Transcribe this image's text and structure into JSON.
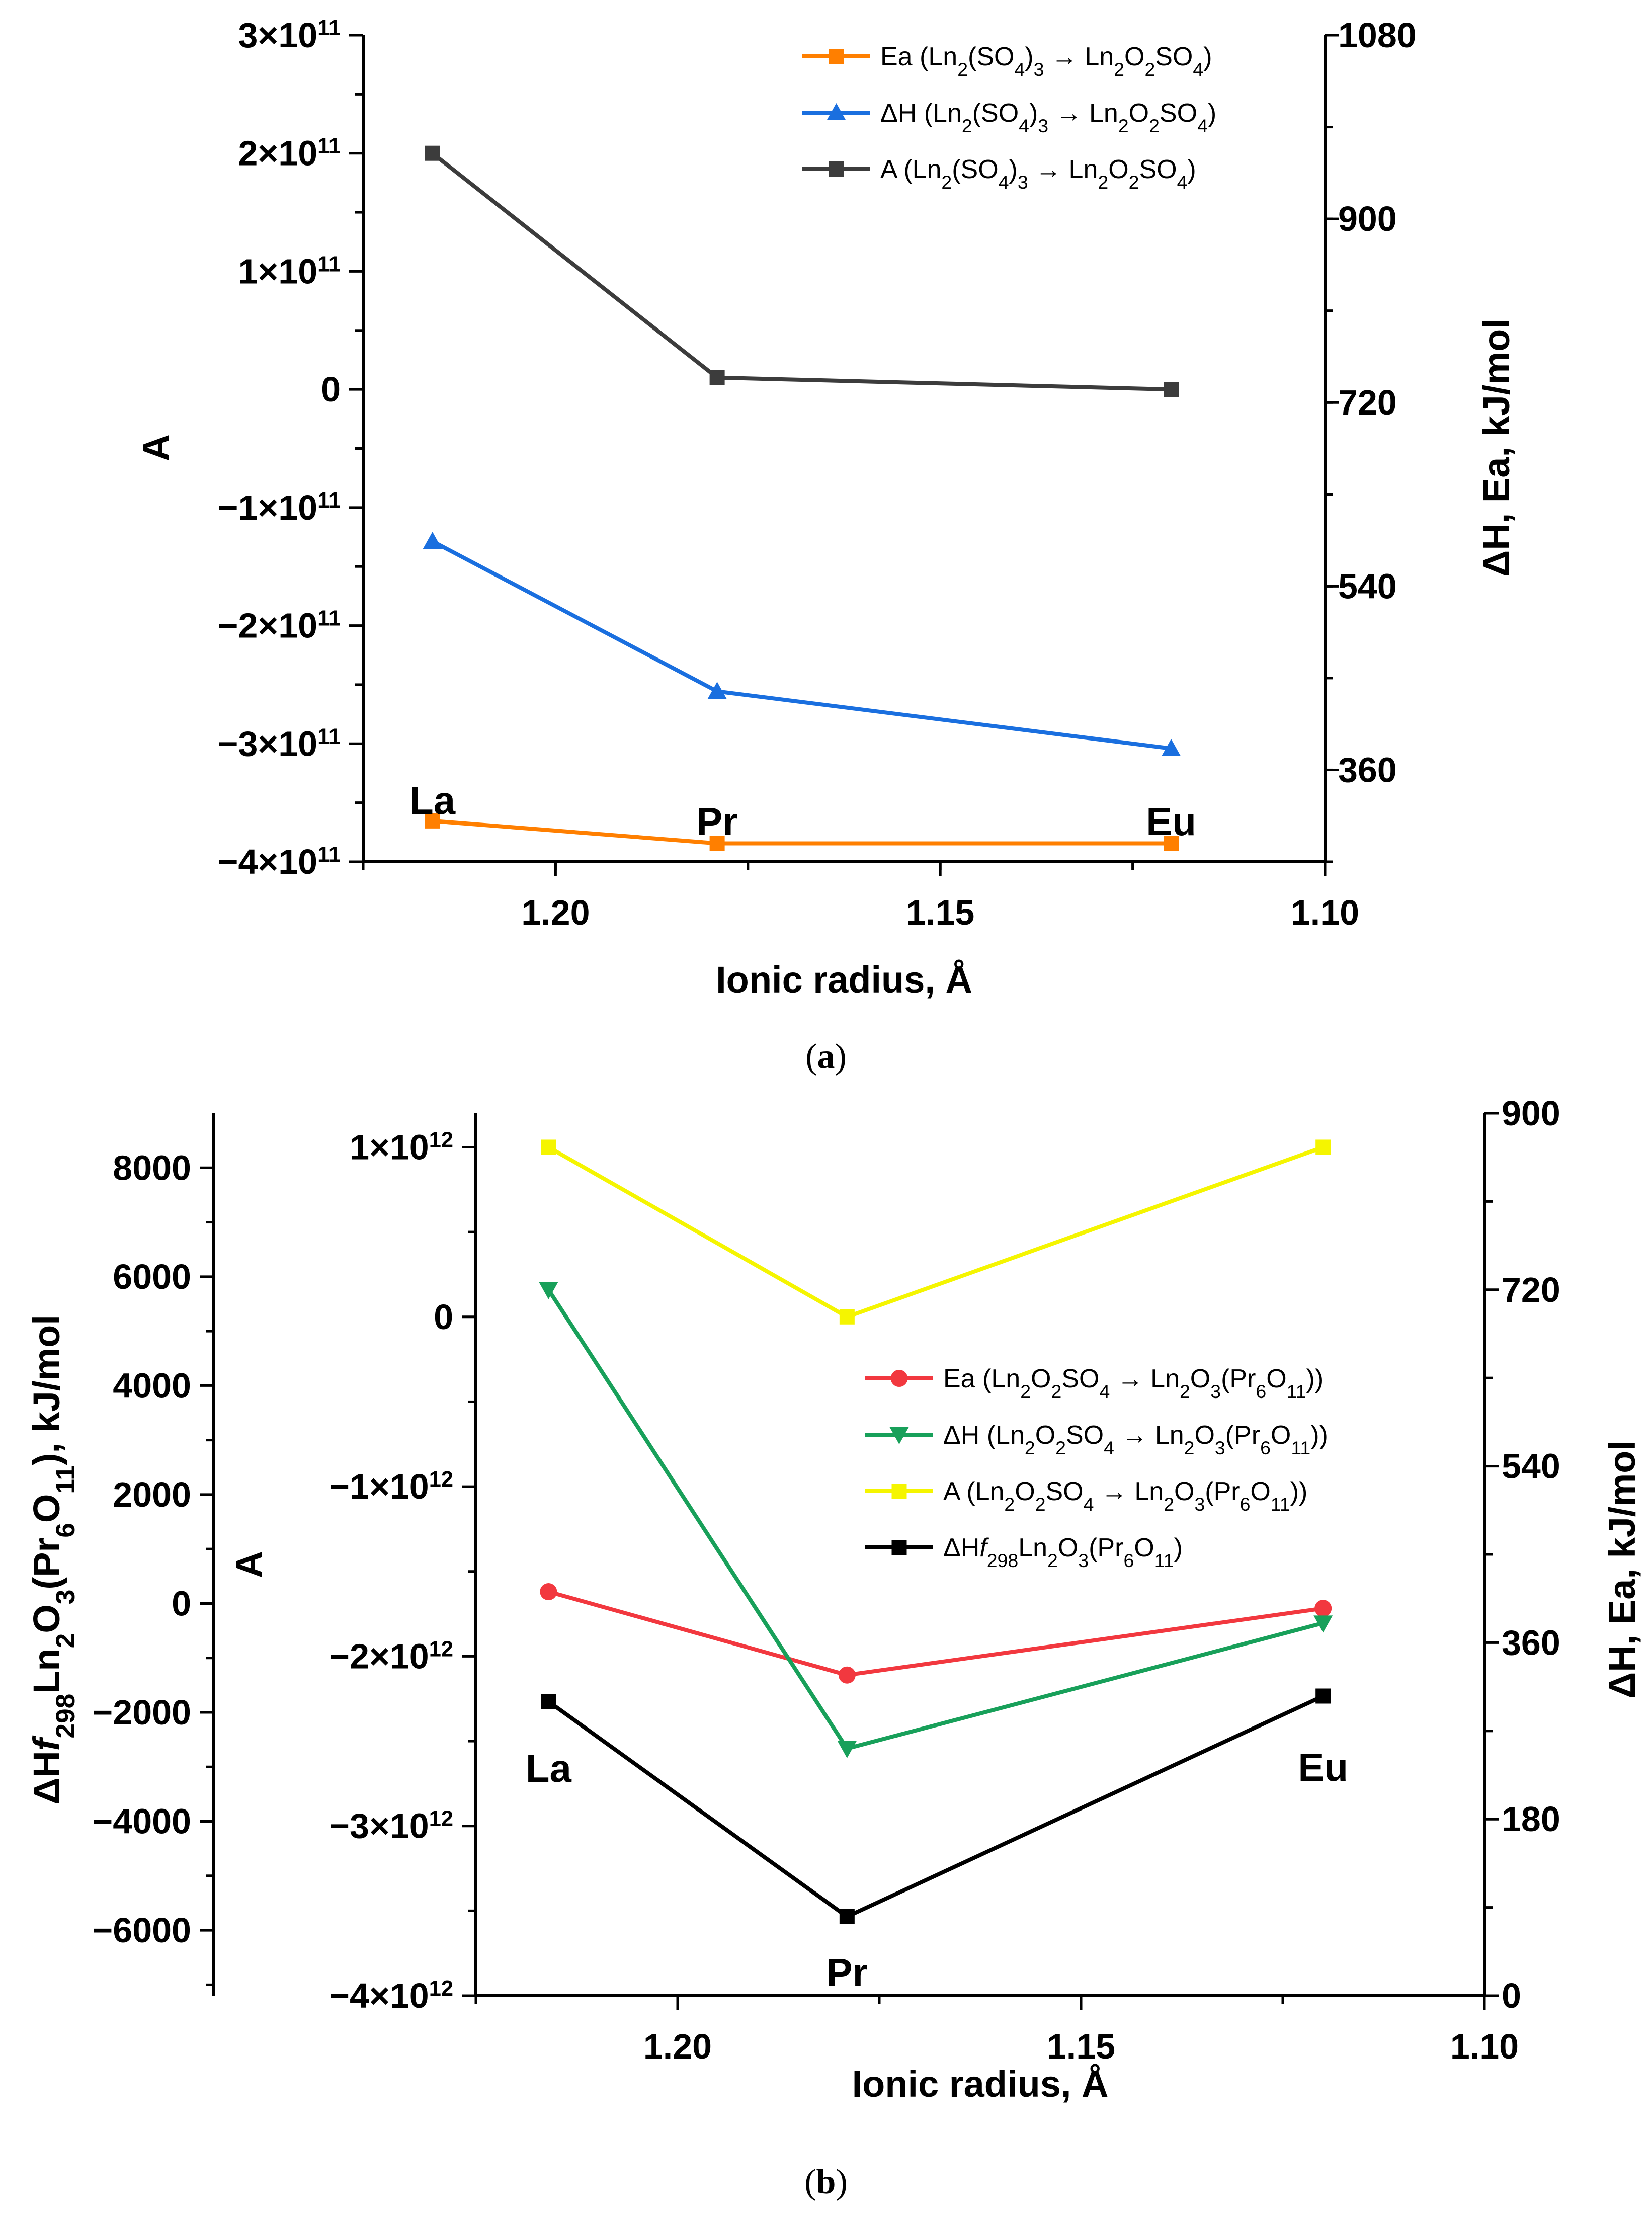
{
  "chart_data": [
    {
      "panel": "a",
      "type": "line",
      "caption": "(a)",
      "categories": [
        "La",
        "Pr",
        "Eu"
      ],
      "x": [
        1.216,
        1.179,
        1.12
      ],
      "xlabel": "Ionic radius, Å",
      "xlim": [
        1.225,
        1.1
      ],
      "xticks": [
        1.2,
        1.15,
        1.1
      ],
      "xtick_labels": [
        "1.20",
        "1.15",
        "1.10"
      ],
      "left_axis": {
        "label": "A",
        "lim": [
          -400000000000.0,
          300000000000.0
        ],
        "tick_values": [
          -400000000000.0,
          -300000000000.0,
          -200000000000.0,
          -100000000000.0,
          0,
          100000000000.0,
          200000000000.0,
          300000000000.0
        ],
        "tick_mantissa": [
          "−4×10",
          "−3×10",
          "−2×10",
          "−1×10",
          "0",
          "1×10",
          "2×10",
          "3×10"
        ],
        "tick_exponent": [
          "11",
          "11",
          "11",
          "11",
          "",
          "11",
          "11",
          "11"
        ]
      },
      "right_axis": {
        "label": "ΔH, Ea, kJ/mol",
        "lim": [
          270,
          1080
        ],
        "tick_values": [
          360,
          540,
          720,
          900,
          1080
        ],
        "tick_labels": [
          "360",
          "540",
          "720",
          "900",
          "1080"
        ]
      },
      "series": [
        {
          "name": "Ea",
          "legend": [
            {
              "t": "Ea (Ln"
            },
            {
              "t": "2",
              "s": "sub"
            },
            {
              "t": "(SO"
            },
            {
              "t": "4",
              "s": "sub"
            },
            {
              "t": ")"
            },
            {
              "t": "3",
              "s": "sub"
            },
            {
              "t": " → Ln"
            },
            {
              "t": "2",
              "s": "sub"
            },
            {
              "t": "O"
            },
            {
              "t": "2",
              "s": "sub"
            },
            {
              "t": "SO"
            },
            {
              "t": "4",
              "s": "sub"
            },
            {
              "t": ")"
            }
          ],
          "axis": "right",
          "color": "#ff7f00",
          "marker": "square",
          "values": [
            310,
            288,
            288
          ]
        },
        {
          "name": "ΔH",
          "legend": [
            {
              "t": "ΔH (Ln"
            },
            {
              "t": "2",
              "s": "sub"
            },
            {
              "t": "(SO"
            },
            {
              "t": "4",
              "s": "sub"
            },
            {
              "t": ")"
            },
            {
              "t": "3",
              "s": "sub"
            },
            {
              "t": " → Ln"
            },
            {
              "t": "2",
              "s": "sub"
            },
            {
              "t": "O"
            },
            {
              "t": "2",
              "s": "sub"
            },
            {
              "t": "SO"
            },
            {
              "t": "4",
              "s": "sub"
            },
            {
              "t": ")"
            }
          ],
          "axis": "right",
          "color": "#1a6fdf",
          "marker": "triangle-up",
          "values": [
            584,
            437,
            381
          ]
        },
        {
          "name": "A",
          "legend": [
            {
              "t": "A (Ln"
            },
            {
              "t": "2",
              "s": "sub"
            },
            {
              "t": "(SO"
            },
            {
              "t": "4",
              "s": "sub"
            },
            {
              "t": ")"
            },
            {
              "t": "3",
              "s": "sub"
            },
            {
              "t": " → Ln"
            },
            {
              "t": "2",
              "s": "sub"
            },
            {
              "t": "O"
            },
            {
              "t": "2",
              "s": "sub"
            },
            {
              "t": "SO"
            },
            {
              "t": "4",
              "s": "sub"
            },
            {
              "t": ")"
            }
          ],
          "axis": "left",
          "color": "#3c3c3c",
          "marker": "square",
          "values": [
            200000000000.0,
            10000000000.0,
            0
          ]
        }
      ],
      "point_labels": [
        "La",
        "Pr",
        "Eu"
      ],
      "legend_position": "top-right"
    },
    {
      "panel": "b",
      "type": "line",
      "caption": "(b)",
      "categories": [
        "La",
        "Pr",
        "Eu"
      ],
      "x": [
        1.216,
        1.179,
        1.12
      ],
      "xlabel": "Ionic radius, Å",
      "xlim": [
        1.225,
        1.1
      ],
      "xticks": [
        1.2,
        1.15,
        1.1
      ],
      "xtick_labels": [
        "1.20",
        "1.15",
        "1.10"
      ],
      "outer_left_axis": {
        "label": [
          {
            "t": "ΔH"
          },
          {
            "t": "f",
            "s": "it"
          },
          {
            "t": "298",
            "s": "sub"
          },
          {
            "t": "Ln"
          },
          {
            "t": "2",
            "s": "sub"
          },
          {
            "t": "O"
          },
          {
            "t": "3",
            "s": "sub"
          },
          {
            "t": "(Pr"
          },
          {
            "t": "6",
            "s": "sub"
          },
          {
            "t": "O"
          },
          {
            "t": "11",
            "s": "sub"
          },
          {
            "t": "), kJ/mol"
          }
        ],
        "lim": [
          -7200,
          9000
        ],
        "tick_values": [
          -6000,
          -4000,
          -2000,
          0,
          2000,
          4000,
          6000,
          8000
        ],
        "tick_labels": [
          "−6000",
          "−4000",
          "−2000",
          "0",
          "2000",
          "4000",
          "6000",
          "8000"
        ]
      },
      "left_axis": {
        "label": "A",
        "lim": [
          -4000000000000.0,
          1200000000000.0
        ],
        "tick_values": [
          -4000000000000.0,
          -3000000000000.0,
          -2000000000000.0,
          -1000000000000.0,
          0,
          1000000000000.0
        ],
        "tick_mantissa": [
          "−4×10",
          "−3×10",
          "−2×10",
          "−1×10",
          "0",
          "1×10"
        ],
        "tick_exponent": [
          "12",
          "12",
          "12",
          "12",
          "",
          "12"
        ]
      },
      "right_axis": {
        "label": "ΔH, Ea, kJ/mol",
        "lim": [
          0,
          900
        ],
        "tick_values": [
          0,
          180,
          360,
          540,
          720,
          900
        ],
        "tick_labels": [
          "0",
          "180",
          "360",
          "540",
          "720",
          "900"
        ]
      },
      "series": [
        {
          "name": "Ea",
          "legend": [
            {
              "t": "Ea (Ln"
            },
            {
              "t": "2",
              "s": "sub"
            },
            {
              "t": "O"
            },
            {
              "t": "2",
              "s": "sub"
            },
            {
              "t": "SO"
            },
            {
              "t": "4",
              "s": "sub"
            },
            {
              "t": " → Ln"
            },
            {
              "t": "2",
              "s": "sub"
            },
            {
              "t": "O"
            },
            {
              "t": "3",
              "s": "sub"
            },
            {
              "t": "(Pr"
            },
            {
              "t": "6",
              "s": "sub"
            },
            {
              "t": "O"
            },
            {
              "t": "11",
              "s": "sub"
            },
            {
              "t": "))"
            }
          ],
          "axis": "right",
          "color": "#f2383f",
          "marker": "circle",
          "values": [
            412,
            327,
            395
          ]
        },
        {
          "name": "ΔH",
          "legend": [
            {
              "t": "ΔH (Ln"
            },
            {
              "t": "2",
              "s": "sub"
            },
            {
              "t": "O"
            },
            {
              "t": "2",
              "s": "sub"
            },
            {
              "t": "SO"
            },
            {
              "t": "4",
              "s": "sub"
            },
            {
              "t": " → Ln"
            },
            {
              "t": "2",
              "s": "sub"
            },
            {
              "t": "O"
            },
            {
              "t": "3",
              "s": "sub"
            },
            {
              "t": "(Pr"
            },
            {
              "t": "6",
              "s": "sub"
            },
            {
              "t": "O"
            },
            {
              "t": "11",
              "s": "sub"
            },
            {
              "t": "))"
            }
          ],
          "axis": "right",
          "color": "#18a05a",
          "marker": "triangle-down",
          "values": [
            720,
            252,
            380
          ]
        },
        {
          "name": "A",
          "legend": [
            {
              "t": "A (Ln"
            },
            {
              "t": "2",
              "s": "sub"
            },
            {
              "t": "O"
            },
            {
              "t": "2",
              "s": "sub"
            },
            {
              "t": "SO"
            },
            {
              "t": "4",
              "s": "sub"
            },
            {
              "t": " → Ln"
            },
            {
              "t": "2",
              "s": "sub"
            },
            {
              "t": "O"
            },
            {
              "t": "3",
              "s": "sub"
            },
            {
              "t": "(Pr"
            },
            {
              "t": "6",
              "s": "sub"
            },
            {
              "t": "O"
            },
            {
              "t": "11",
              "s": "sub"
            },
            {
              "t": "))"
            }
          ],
          "axis": "left",
          "color": "#f5f500",
          "marker": "square",
          "values": [
            1000000000000.0,
            0,
            1000000000000.0
          ]
        },
        {
          "name": "ΔHf298",
          "legend": [
            {
              "t": "ΔH"
            },
            {
              "t": "f",
              "s": "it"
            },
            {
              "t": "298",
              "s": "sub"
            },
            {
              "t": "Ln"
            },
            {
              "t": "2",
              "s": "sub"
            },
            {
              "t": "O"
            },
            {
              "t": "3",
              "s": "sub"
            },
            {
              "t": "(Pr"
            },
            {
              "t": "6",
              "s": "sub"
            },
            {
              "t": "O"
            },
            {
              "t": "11",
              "s": "sub"
            },
            {
              "t": ")"
            }
          ],
          "axis": "outer_left",
          "color": "#000000",
          "marker": "square",
          "values": [
            -1800,
            -5750,
            -1700
          ]
        }
      ],
      "point_labels": [
        "La",
        "Pr",
        "Eu"
      ],
      "legend_position": "center-right"
    }
  ]
}
